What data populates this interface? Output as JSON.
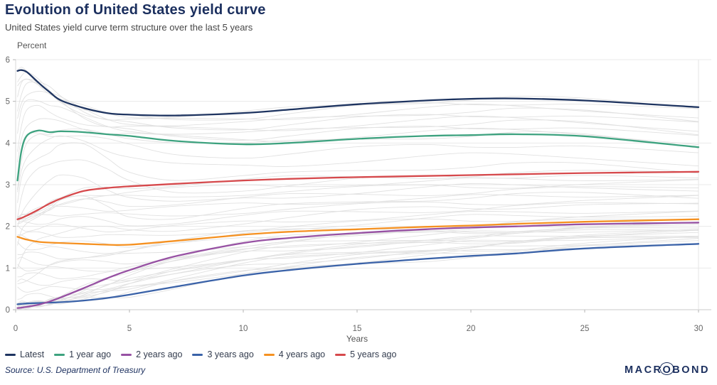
{
  "header": {
    "title": "Evolution of United States yield curve",
    "subtitle": "United States yield curve term structure over the last 5 years"
  },
  "chart_data": {
    "type": "line",
    "title": "Evolution of United States yield curve",
    "xlabel": "Years",
    "ylabel": "Percent",
    "xlim": [
      0,
      30
    ],
    "ylim": [
      0,
      6
    ],
    "x_ticks": [
      0,
      5,
      10,
      15,
      20,
      25,
      30
    ],
    "y_ticks": [
      0,
      1,
      2,
      3,
      4,
      5,
      6
    ],
    "grid": "horizontal",
    "legend_position": "bottom-left",
    "x": [
      0.08,
      0.25,
      0.5,
      1,
      1.5,
      2,
      3,
      4,
      5,
      7,
      10,
      12,
      15,
      18,
      20,
      22,
      25,
      30
    ],
    "series": [
      {
        "name": "Latest",
        "color": "#1e3460",
        "values": [
          5.73,
          5.75,
          5.7,
          5.45,
          5.22,
          5.02,
          4.84,
          4.72,
          4.68,
          4.66,
          4.72,
          4.8,
          4.93,
          5.02,
          5.06,
          5.07,
          5.02,
          4.86
        ]
      },
      {
        "name": "1 year ago",
        "color": "#3da27f",
        "values": [
          3.1,
          3.8,
          4.18,
          4.3,
          4.26,
          4.28,
          4.26,
          4.21,
          4.17,
          4.05,
          3.97,
          4.0,
          4.1,
          4.17,
          4.19,
          4.21,
          4.16,
          3.9
        ]
      },
      {
        "name": "2 years ago",
        "color": "#9751a3",
        "values": [
          0.04,
          0.05,
          0.07,
          0.12,
          0.2,
          0.3,
          0.52,
          0.75,
          0.95,
          1.28,
          1.6,
          1.72,
          1.84,
          1.93,
          1.97,
          2.0,
          2.05,
          2.09
        ]
      },
      {
        "name": "3 years ago",
        "color": "#3a62a8",
        "values": [
          0.13,
          0.14,
          0.15,
          0.16,
          0.17,
          0.18,
          0.22,
          0.28,
          0.36,
          0.55,
          0.82,
          0.95,
          1.1,
          1.22,
          1.29,
          1.35,
          1.47,
          1.58
        ]
      },
      {
        "name": "4 years ago",
        "color": "#f59121",
        "values": [
          1.75,
          1.72,
          1.68,
          1.63,
          1.61,
          1.6,
          1.58,
          1.56,
          1.56,
          1.65,
          1.8,
          1.87,
          1.93,
          1.99,
          2.02,
          2.06,
          2.11,
          2.17
        ]
      },
      {
        "name": "5 years ago",
        "color": "#d6494c",
        "values": [
          2.17,
          2.2,
          2.26,
          2.4,
          2.55,
          2.67,
          2.85,
          2.92,
          2.96,
          3.02,
          3.1,
          3.14,
          3.18,
          3.21,
          3.23,
          3.25,
          3.28,
          3.31
        ]
      }
    ],
    "background_curves": {
      "description": "faint gray historical yield curves spanning the last 5 years",
      "count": 46,
      "color": "#dcdcdc"
    }
  },
  "source": {
    "text": "Source: U.S. Department of Treasury"
  },
  "branding": {
    "logo_prefix": "MACR",
    "logo_o": "O",
    "logo_suffix": "BOND"
  }
}
